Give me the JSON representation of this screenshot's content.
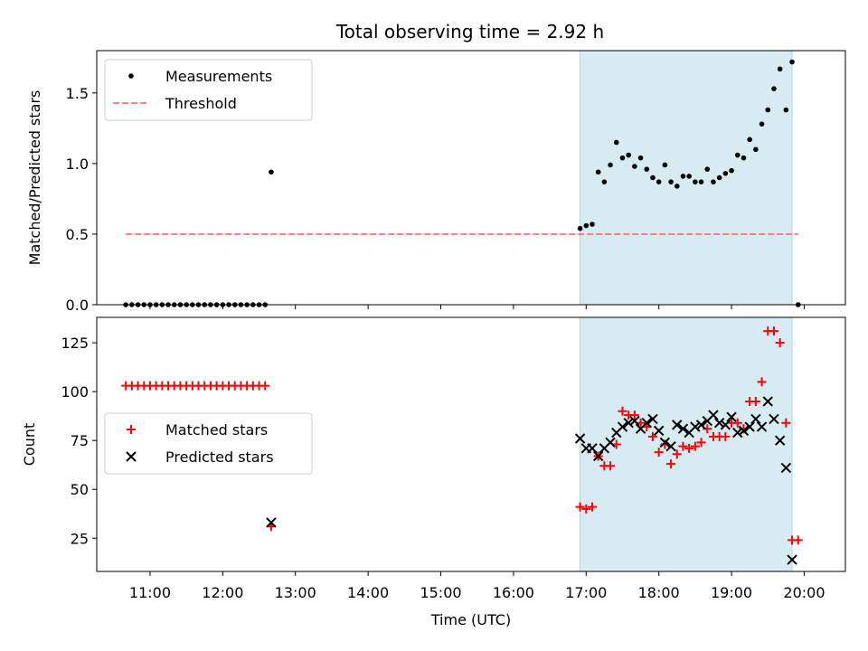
{
  "title": "Total observing time = 2.92 h",
  "colors": {
    "measurement": "#000000",
    "threshold": "#ff7f7f",
    "matched": "#ff0000",
    "predicted": "#000000",
    "shade": "#add8e6"
  },
  "chart_data": [
    {
      "type": "scatter",
      "ylabel": "Matched/Predicted stars",
      "xlabel": "",
      "xlim": [
        "10:16",
        "20:34"
      ],
      "ylim": [
        0,
        1.8
      ],
      "yticks": [
        "0.0",
        "0.5",
        "1.0",
        "1.5"
      ],
      "shaded_span": [
        "16:55",
        "19:50"
      ],
      "legend": {
        "position": "upper left",
        "items": [
          "Measurements",
          "Threshold"
        ]
      },
      "threshold": {
        "name": "Threshold",
        "y": 0.5,
        "x_range": [
          "10:40",
          "19:55"
        ]
      },
      "series": [
        {
          "name": "Measurements",
          "marker": "dot",
          "points": [
            [
              "10:40",
              0
            ],
            [
              "10:45",
              0
            ],
            [
              "10:50",
              0
            ],
            [
              "10:55",
              0
            ],
            [
              "11:00",
              0
            ],
            [
              "11:05",
              0
            ],
            [
              "11:10",
              0
            ],
            [
              "11:15",
              0
            ],
            [
              "11:20",
              0
            ],
            [
              "11:25",
              0
            ],
            [
              "11:30",
              0
            ],
            [
              "11:35",
              0
            ],
            [
              "11:40",
              0
            ],
            [
              "11:45",
              0
            ],
            [
              "11:50",
              0
            ],
            [
              "11:55",
              0
            ],
            [
              "12:00",
              0
            ],
            [
              "12:05",
              0
            ],
            [
              "12:10",
              0
            ],
            [
              "12:15",
              0
            ],
            [
              "12:20",
              0
            ],
            [
              "12:25",
              0
            ],
            [
              "12:30",
              0
            ],
            [
              "12:35",
              0
            ],
            [
              "12:40",
              0.94
            ],
            [
              "16:55",
              0.54
            ],
            [
              "17:00",
              0.56
            ],
            [
              "17:05",
              0.57
            ],
            [
              "17:10",
              0.94
            ],
            [
              "17:15",
              0.87
            ],
            [
              "17:20",
              0.99
            ],
            [
              "17:25",
              1.15
            ],
            [
              "17:30",
              1.04
            ],
            [
              "17:35",
              1.06
            ],
            [
              "17:40",
              0.98
            ],
            [
              "17:45",
              1.04
            ],
            [
              "17:50",
              0.96
            ],
            [
              "17:55",
              0.9
            ],
            [
              "18:00",
              0.87
            ],
            [
              "18:05",
              0.99
            ],
            [
              "18:10",
              0.87
            ],
            [
              "18:15",
              0.84
            ],
            [
              "18:20",
              0.91
            ],
            [
              "18:25",
              0.91
            ],
            [
              "18:30",
              0.87
            ],
            [
              "18:35",
              0.87
            ],
            [
              "18:40",
              0.96
            ],
            [
              "18:45",
              0.87
            ],
            [
              "18:50",
              0.9
            ],
            [
              "18:55",
              0.93
            ],
            [
              "19:00",
              0.95
            ],
            [
              "19:05",
              1.06
            ],
            [
              "19:10",
              1.04
            ],
            [
              "19:15",
              1.17
            ],
            [
              "19:20",
              1.1
            ],
            [
              "19:25",
              1.28
            ],
            [
              "19:30",
              1.38
            ],
            [
              "19:35",
              1.53
            ],
            [
              "19:40",
              1.67
            ],
            [
              "19:45",
              1.38
            ],
            [
              "19:50",
              1.72
            ],
            [
              "19:55",
              0
            ]
          ]
        }
      ]
    },
    {
      "type": "scatter",
      "ylabel": "Count",
      "xlabel": "Time (UTC)",
      "xlim": [
        "10:16",
        "20:34"
      ],
      "ylim": [
        8,
        138
      ],
      "yticks": [
        "25",
        "50",
        "75",
        "100",
        "125"
      ],
      "xticks": [
        "11:00",
        "12:00",
        "13:00",
        "14:00",
        "15:00",
        "16:00",
        "17:00",
        "18:00",
        "19:00",
        "20:00"
      ],
      "shaded_span": [
        "16:55",
        "19:50"
      ],
      "legend": {
        "position": "center left",
        "items": [
          "Matched stars",
          "Predicted stars"
        ]
      },
      "series": [
        {
          "name": "Matched stars",
          "marker": "plus",
          "points": [
            [
              "10:40",
              103
            ],
            [
              "10:45",
              103
            ],
            [
              "10:50",
              103
            ],
            [
              "10:55",
              103
            ],
            [
              "11:00",
              103
            ],
            [
              "11:05",
              103
            ],
            [
              "11:10",
              103
            ],
            [
              "11:15",
              103
            ],
            [
              "11:20",
              103
            ],
            [
              "11:25",
              103
            ],
            [
              "11:30",
              103
            ],
            [
              "11:35",
              103
            ],
            [
              "11:40",
              103
            ],
            [
              "11:45",
              103
            ],
            [
              "11:50",
              103
            ],
            [
              "11:55",
              103
            ],
            [
              "12:00",
              103
            ],
            [
              "12:05",
              103
            ],
            [
              "12:10",
              103
            ],
            [
              "12:15",
              103
            ],
            [
              "12:20",
              103
            ],
            [
              "12:25",
              103
            ],
            [
              "12:30",
              103
            ],
            [
              "12:35",
              103
            ],
            [
              "12:40",
              31
            ],
            [
              "16:55",
              41
            ],
            [
              "17:00",
              40
            ],
            [
              "17:05",
              41
            ],
            [
              "17:10",
              67
            ],
            [
              "17:15",
              62
            ],
            [
              "17:20",
              62
            ],
            [
              "17:25",
              73
            ],
            [
              "17:30",
              90
            ],
            [
              "17:35",
              88
            ],
            [
              "17:40",
              88
            ],
            [
              "17:45",
              84
            ],
            [
              "17:50",
              82
            ],
            [
              "17:55",
              77
            ],
            [
              "18:00",
              69
            ],
            [
              "18:05",
              73
            ],
            [
              "18:10",
              63
            ],
            [
              "18:15",
              68
            ],
            [
              "18:20",
              72
            ],
            [
              "18:25",
              71
            ],
            [
              "18:30",
              72
            ],
            [
              "18:35",
              74
            ],
            [
              "18:40",
              81
            ],
            [
              "18:45",
              77
            ],
            [
              "18:50",
              77
            ],
            [
              "18:55",
              77
            ],
            [
              "19:00",
              84
            ],
            [
              "19:05",
              84
            ],
            [
              "19:10",
              81
            ],
            [
              "19:15",
              95
            ],
            [
              "19:20",
              95
            ],
            [
              "19:25",
              105
            ],
            [
              "19:30",
              131
            ],
            [
              "19:35",
              131
            ],
            [
              "19:40",
              125
            ],
            [
              "19:45",
              84
            ],
            [
              "19:50",
              24
            ],
            [
              "19:55",
              24
            ]
          ]
        },
        {
          "name": "Predicted stars",
          "marker": "x",
          "points": [
            [
              "12:40",
              33
            ],
            [
              "16:55",
              76
            ],
            [
              "17:00",
              71
            ],
            [
              "17:05",
              71
            ],
            [
              "17:10",
              67
            ],
            [
              "17:15",
              71
            ],
            [
              "17:20",
              74
            ],
            [
              "17:25",
              79
            ],
            [
              "17:30",
              82
            ],
            [
              "17:35",
              84
            ],
            [
              "17:40",
              85
            ],
            [
              "17:45",
              81
            ],
            [
              "17:50",
              84
            ],
            [
              "17:55",
              86
            ],
            [
              "18:00",
              80
            ],
            [
              "18:05",
              74
            ],
            [
              "18:10",
              72
            ],
            [
              "18:15",
              83
            ],
            [
              "18:20",
              81
            ],
            [
              "18:25",
              79
            ],
            [
              "18:30",
              82
            ],
            [
              "18:35",
              83
            ],
            [
              "18:40",
              85
            ],
            [
              "18:45",
              88
            ],
            [
              "18:50",
              84
            ],
            [
              "18:55",
              83
            ],
            [
              "19:00",
              87
            ],
            [
              "19:05",
              79
            ],
            [
              "19:10",
              80
            ],
            [
              "19:15",
              82
            ],
            [
              "19:20",
              86
            ],
            [
              "19:25",
              82
            ],
            [
              "19:30",
              95
            ],
            [
              "19:35",
              86
            ],
            [
              "19:40",
              75
            ],
            [
              "19:45",
              61
            ],
            [
              "19:50",
              14
            ]
          ]
        }
      ]
    }
  ]
}
